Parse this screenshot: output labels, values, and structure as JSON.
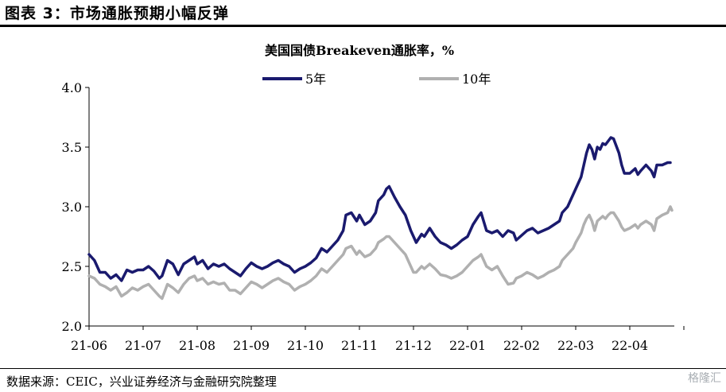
{
  "figure_title": "图表 3：市场通胀预期小幅反弹",
  "source": "数据来源：CEIC，兴业证券经济与金融研究院整理",
  "watermark": "格隆汇",
  "colors": {
    "series_5y": "#1a1a6e",
    "series_10y": "#b0b0b0",
    "axis": "#000000"
  },
  "chart_data": {
    "type": "line",
    "title": "美国国债Breakeven通胀率，%",
    "xlabel": "",
    "ylabel": "",
    "ylim": [
      2.0,
      4.0
    ],
    "yticks": [
      "2.0",
      "2.5",
      "3.0",
      "3.5",
      "4.0"
    ],
    "xticks": [
      "21-06",
      "21-07",
      "21-08",
      "21-09",
      "21-10",
      "21-11",
      "21-12",
      "22-01",
      "22-02",
      "22-03",
      "22-04"
    ],
    "legend_position": "top-center",
    "series": [
      {
        "name": "5年",
        "color": "#1a1a6e",
        "points": [
          [
            0,
            2.6
          ],
          [
            0.1,
            2.55
          ],
          [
            0.2,
            2.45
          ],
          [
            0.3,
            2.45
          ],
          [
            0.4,
            2.4
          ],
          [
            0.5,
            2.43
          ],
          [
            0.6,
            2.38
          ],
          [
            0.7,
            2.47
          ],
          [
            0.8,
            2.45
          ],
          [
            0.9,
            2.47
          ],
          [
            1.0,
            2.47
          ],
          [
            1.1,
            2.5
          ],
          [
            1.2,
            2.46
          ],
          [
            1.3,
            2.4
          ],
          [
            1.35,
            2.42
          ],
          [
            1.45,
            2.55
          ],
          [
            1.55,
            2.52
          ],
          [
            1.65,
            2.43
          ],
          [
            1.75,
            2.52
          ],
          [
            1.85,
            2.55
          ],
          [
            1.95,
            2.58
          ],
          [
            2.0,
            2.52
          ],
          [
            2.1,
            2.55
          ],
          [
            2.2,
            2.48
          ],
          [
            2.3,
            2.52
          ],
          [
            2.4,
            2.5
          ],
          [
            2.5,
            2.52
          ],
          [
            2.6,
            2.48
          ],
          [
            2.7,
            2.45
          ],
          [
            2.8,
            2.42
          ],
          [
            2.9,
            2.48
          ],
          [
            3.0,
            2.53
          ],
          [
            3.1,
            2.5
          ],
          [
            3.2,
            2.48
          ],
          [
            3.3,
            2.5
          ],
          [
            3.4,
            2.53
          ],
          [
            3.5,
            2.55
          ],
          [
            3.6,
            2.52
          ],
          [
            3.7,
            2.5
          ],
          [
            3.8,
            2.45
          ],
          [
            3.9,
            2.48
          ],
          [
            4.0,
            2.5
          ],
          [
            4.1,
            2.53
          ],
          [
            4.2,
            2.57
          ],
          [
            4.3,
            2.65
          ],
          [
            4.4,
            2.62
          ],
          [
            4.5,
            2.67
          ],
          [
            4.6,
            2.72
          ],
          [
            4.7,
            2.8
          ],
          [
            4.75,
            2.93
          ],
          [
            4.85,
            2.95
          ],
          [
            4.95,
            2.88
          ],
          [
            5.0,
            2.93
          ],
          [
            5.1,
            2.85
          ],
          [
            5.2,
            2.88
          ],
          [
            5.3,
            2.95
          ],
          [
            5.35,
            3.05
          ],
          [
            5.45,
            3.1
          ],
          [
            5.5,
            3.15
          ],
          [
            5.55,
            3.17
          ],
          [
            5.65,
            3.08
          ],
          [
            5.75,
            3.0
          ],
          [
            5.85,
            2.93
          ],
          [
            5.95,
            2.8
          ],
          [
            6.0,
            2.75
          ],
          [
            6.05,
            2.7
          ],
          [
            6.15,
            2.77
          ],
          [
            6.2,
            2.75
          ],
          [
            6.3,
            2.82
          ],
          [
            6.4,
            2.75
          ],
          [
            6.5,
            2.7
          ],
          [
            6.6,
            2.68
          ],
          [
            6.7,
            2.65
          ],
          [
            6.8,
            2.68
          ],
          [
            6.9,
            2.72
          ],
          [
            7.0,
            2.75
          ],
          [
            7.1,
            2.85
          ],
          [
            7.2,
            2.92
          ],
          [
            7.25,
            2.95
          ],
          [
            7.35,
            2.8
          ],
          [
            7.45,
            2.78
          ],
          [
            7.55,
            2.8
          ],
          [
            7.65,
            2.75
          ],
          [
            7.75,
            2.8
          ],
          [
            7.85,
            2.78
          ],
          [
            7.9,
            2.72
          ],
          [
            8.0,
            2.76
          ],
          [
            8.1,
            2.8
          ],
          [
            8.2,
            2.82
          ],
          [
            8.3,
            2.78
          ],
          [
            8.4,
            2.8
          ],
          [
            8.5,
            2.82
          ],
          [
            8.6,
            2.85
          ],
          [
            8.7,
            2.88
          ],
          [
            8.75,
            2.95
          ],
          [
            8.85,
            3.0
          ],
          [
            8.95,
            3.1
          ],
          [
            9.0,
            3.15
          ],
          [
            9.1,
            3.25
          ],
          [
            9.15,
            3.35
          ],
          [
            9.2,
            3.45
          ],
          [
            9.25,
            3.52
          ],
          [
            9.3,
            3.48
          ],
          [
            9.35,
            3.4
          ],
          [
            9.4,
            3.5
          ],
          [
            9.45,
            3.48
          ],
          [
            9.5,
            3.53
          ],
          [
            9.55,
            3.52
          ],
          [
            9.6,
            3.55
          ],
          [
            9.65,
            3.58
          ],
          [
            9.7,
            3.57
          ],
          [
            9.8,
            3.45
          ],
          [
            9.85,
            3.35
          ],
          [
            9.9,
            3.28
          ],
          [
            10.0,
            3.28
          ],
          [
            10.1,
            3.32
          ],
          [
            10.15,
            3.27
          ],
          [
            10.2,
            3.3
          ],
          [
            10.3,
            3.35
          ],
          [
            10.4,
            3.3
          ],
          [
            10.45,
            3.25
          ],
          [
            10.5,
            3.35
          ],
          [
            10.6,
            3.35
          ],
          [
            10.7,
            3.37
          ],
          [
            10.75,
            3.37
          ]
        ]
      },
      {
        "name": "10年",
        "color": "#b0b0b0",
        "points": [
          [
            0,
            2.42
          ],
          [
            0.1,
            2.4
          ],
          [
            0.2,
            2.35
          ],
          [
            0.3,
            2.33
          ],
          [
            0.4,
            2.3
          ],
          [
            0.5,
            2.33
          ],
          [
            0.6,
            2.25
          ],
          [
            0.7,
            2.28
          ],
          [
            0.8,
            2.32
          ],
          [
            0.9,
            2.3
          ],
          [
            1.0,
            2.33
          ],
          [
            1.1,
            2.35
          ],
          [
            1.2,
            2.3
          ],
          [
            1.3,
            2.25
          ],
          [
            1.35,
            2.23
          ],
          [
            1.45,
            2.35
          ],
          [
            1.55,
            2.32
          ],
          [
            1.65,
            2.28
          ],
          [
            1.75,
            2.35
          ],
          [
            1.85,
            2.4
          ],
          [
            1.95,
            2.42
          ],
          [
            2.0,
            2.38
          ],
          [
            2.1,
            2.4
          ],
          [
            2.2,
            2.35
          ],
          [
            2.3,
            2.37
          ],
          [
            2.4,
            2.35
          ],
          [
            2.5,
            2.36
          ],
          [
            2.6,
            2.3
          ],
          [
            2.7,
            2.3
          ],
          [
            2.8,
            2.27
          ],
          [
            2.9,
            2.32
          ],
          [
            3.0,
            2.37
          ],
          [
            3.1,
            2.35
          ],
          [
            3.2,
            2.32
          ],
          [
            3.3,
            2.35
          ],
          [
            3.4,
            2.38
          ],
          [
            3.5,
            2.4
          ],
          [
            3.6,
            2.37
          ],
          [
            3.7,
            2.35
          ],
          [
            3.8,
            2.3
          ],
          [
            3.9,
            2.33
          ],
          [
            4.0,
            2.35
          ],
          [
            4.1,
            2.38
          ],
          [
            4.2,
            2.42
          ],
          [
            4.3,
            2.48
          ],
          [
            4.4,
            2.45
          ],
          [
            4.5,
            2.5
          ],
          [
            4.6,
            2.55
          ],
          [
            4.7,
            2.6
          ],
          [
            4.75,
            2.65
          ],
          [
            4.85,
            2.67
          ],
          [
            4.95,
            2.6
          ],
          [
            5.0,
            2.63
          ],
          [
            5.1,
            2.58
          ],
          [
            5.2,
            2.6
          ],
          [
            5.3,
            2.65
          ],
          [
            5.35,
            2.7
          ],
          [
            5.45,
            2.73
          ],
          [
            5.5,
            2.75
          ],
          [
            5.55,
            2.75
          ],
          [
            5.65,
            2.7
          ],
          [
            5.75,
            2.65
          ],
          [
            5.85,
            2.6
          ],
          [
            5.95,
            2.5
          ],
          [
            6.0,
            2.45
          ],
          [
            6.05,
            2.45
          ],
          [
            6.15,
            2.5
          ],
          [
            6.2,
            2.48
          ],
          [
            6.3,
            2.52
          ],
          [
            6.4,
            2.48
          ],
          [
            6.5,
            2.43
          ],
          [
            6.6,
            2.42
          ],
          [
            6.7,
            2.4
          ],
          [
            6.8,
            2.42
          ],
          [
            6.9,
            2.45
          ],
          [
            7.0,
            2.5
          ],
          [
            7.1,
            2.55
          ],
          [
            7.2,
            2.58
          ],
          [
            7.25,
            2.6
          ],
          [
            7.35,
            2.5
          ],
          [
            7.45,
            2.47
          ],
          [
            7.55,
            2.5
          ],
          [
            7.65,
            2.42
          ],
          [
            7.75,
            2.35
          ],
          [
            7.85,
            2.36
          ],
          [
            7.9,
            2.4
          ],
          [
            8.0,
            2.42
          ],
          [
            8.1,
            2.45
          ],
          [
            8.2,
            2.43
          ],
          [
            8.3,
            2.4
          ],
          [
            8.4,
            2.42
          ],
          [
            8.5,
            2.45
          ],
          [
            8.6,
            2.47
          ],
          [
            8.7,
            2.5
          ],
          [
            8.75,
            2.55
          ],
          [
            8.85,
            2.6
          ],
          [
            8.95,
            2.65
          ],
          [
            9.0,
            2.7
          ],
          [
            9.1,
            2.78
          ],
          [
            9.15,
            2.85
          ],
          [
            9.2,
            2.9
          ],
          [
            9.25,
            2.93
          ],
          [
            9.3,
            2.88
          ],
          [
            9.35,
            2.8
          ],
          [
            9.4,
            2.88
          ],
          [
            9.45,
            2.9
          ],
          [
            9.5,
            2.92
          ],
          [
            9.55,
            2.9
          ],
          [
            9.6,
            2.93
          ],
          [
            9.65,
            2.95
          ],
          [
            9.7,
            2.95
          ],
          [
            9.8,
            2.88
          ],
          [
            9.85,
            2.83
          ],
          [
            9.9,
            2.8
          ],
          [
            10.0,
            2.82
          ],
          [
            10.1,
            2.85
          ],
          [
            10.15,
            2.82
          ],
          [
            10.2,
            2.85
          ],
          [
            10.3,
            2.88
          ],
          [
            10.4,
            2.85
          ],
          [
            10.45,
            2.8
          ],
          [
            10.5,
            2.9
          ],
          [
            10.6,
            2.93
          ],
          [
            10.7,
            2.95
          ],
          [
            10.75,
            3.0
          ],
          [
            10.78,
            2.97
          ]
        ]
      }
    ]
  }
}
